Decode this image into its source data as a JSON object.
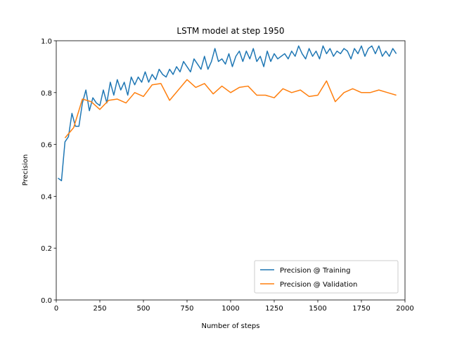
{
  "chart_data": {
    "type": "line",
    "title": "LSTM model at step 1950",
    "xlabel": "Number of steps",
    "ylabel": "Precision",
    "xlim": [
      0,
      2000
    ],
    "ylim": [
      0,
      1
    ],
    "xticks": [
      0,
      250,
      500,
      750,
      1000,
      1250,
      1500,
      1750,
      2000
    ],
    "yticks": [
      {
        "value": 0,
        "label": "0.0"
      },
      0.2,
      0.4,
      0.6,
      0.8,
      {
        "value": 1,
        "label": "1.0"
      }
    ],
    "legend": "lower right",
    "series": [
      {
        "name": "Precision @ Training",
        "color": "#1f77b4",
        "x": [
          10,
          30,
          50,
          70,
          90,
          110,
          130,
          150,
          170,
          190,
          210,
          230,
          250,
          270,
          290,
          310,
          330,
          350,
          370,
          390,
          410,
          430,
          450,
          470,
          490,
          510,
          530,
          550,
          570,
          590,
          610,
          630,
          650,
          670,
          690,
          710,
          730,
          750,
          770,
          790,
          810,
          830,
          850,
          870,
          890,
          910,
          930,
          950,
          970,
          990,
          1010,
          1030,
          1050,
          1070,
          1090,
          1110,
          1130,
          1150,
          1170,
          1190,
          1210,
          1230,
          1250,
          1270,
          1290,
          1310,
          1330,
          1350,
          1370,
          1390,
          1410,
          1430,
          1450,
          1470,
          1490,
          1510,
          1530,
          1550,
          1570,
          1590,
          1610,
          1630,
          1650,
          1670,
          1690,
          1710,
          1730,
          1750,
          1770,
          1790,
          1810,
          1830,
          1850,
          1870,
          1890,
          1910,
          1930,
          1950
        ],
        "values": [
          0.47,
          0.46,
          0.61,
          0.63,
          0.72,
          0.67,
          0.67,
          0.76,
          0.81,
          0.73,
          0.78,
          0.76,
          0.75,
          0.81,
          0.76,
          0.84,
          0.79,
          0.85,
          0.81,
          0.84,
          0.79,
          0.86,
          0.83,
          0.86,
          0.84,
          0.88,
          0.84,
          0.87,
          0.85,
          0.89,
          0.87,
          0.86,
          0.89,
          0.87,
          0.9,
          0.88,
          0.92,
          0.9,
          0.88,
          0.93,
          0.91,
          0.89,
          0.94,
          0.89,
          0.92,
          0.97,
          0.92,
          0.93,
          0.91,
          0.95,
          0.9,
          0.94,
          0.96,
          0.92,
          0.96,
          0.93,
          0.97,
          0.92,
          0.94,
          0.9,
          0.96,
          0.92,
          0.95,
          0.93,
          0.94,
          0.95,
          0.93,
          0.96,
          0.94,
          0.98,
          0.95,
          0.93,
          0.97,
          0.94,
          0.96,
          0.93,
          0.98,
          0.95,
          0.97,
          0.94,
          0.96,
          0.95,
          0.97,
          0.96,
          0.93,
          0.97,
          0.95,
          0.98,
          0.94,
          0.97,
          0.98,
          0.95,
          0.98,
          0.94,
          0.96,
          0.94,
          0.97,
          0.95
        ]
      },
      {
        "name": "Precision @ Validation",
        "color": "#ff7f0e",
        "x": [
          50,
          100,
          150,
          200,
          250,
          300,
          350,
          400,
          450,
          500,
          550,
          600,
          650,
          700,
          750,
          800,
          850,
          900,
          950,
          1000,
          1050,
          1100,
          1150,
          1200,
          1250,
          1300,
          1350,
          1400,
          1450,
          1500,
          1550,
          1600,
          1650,
          1700,
          1750,
          1800,
          1850,
          1900,
          1950
        ],
        "values": [
          0.625,
          0.665,
          0.775,
          0.765,
          0.735,
          0.77,
          0.775,
          0.76,
          0.8,
          0.785,
          0.83,
          0.835,
          0.77,
          0.81,
          0.85,
          0.82,
          0.835,
          0.795,
          0.825,
          0.8,
          0.82,
          0.825,
          0.79,
          0.79,
          0.78,
          0.815,
          0.8,
          0.81,
          0.785,
          0.79,
          0.845,
          0.765,
          0.8,
          0.815,
          0.8,
          0.8,
          0.81,
          0.8,
          0.79
        ]
      }
    ]
  }
}
